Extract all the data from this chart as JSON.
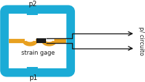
{
  "bg_color": "#ffffff",
  "blue_color": "#1babd6",
  "orange_color": "#e8a020",
  "black_color": "#1a1a1a",
  "text_color": "#1a1a1a",
  "label_p2": "p2",
  "label_p1": "p1",
  "label_sg": "strain gage",
  "label_circuit": "p/ circuito",
  "fig_width": 2.11,
  "fig_height": 1.2
}
